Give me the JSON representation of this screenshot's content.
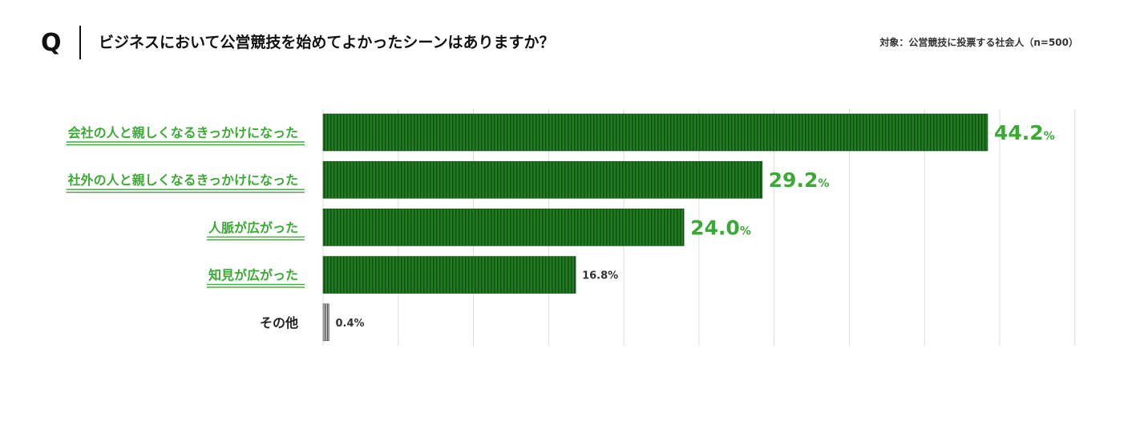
{
  "header": {
    "q_mark": "Q",
    "question": "ビジネスにおいて公営競技を始めてよかったシーンはありますか？",
    "target": "対象：公営競技に投票する社会人（n=500）"
  },
  "colors": {
    "bar_fill": "#1e7d1e",
    "bar_stripe": "#0f4f0f",
    "highlight_text": "#3aaa35",
    "other_bar": "#888888",
    "grid": "#dddddd",
    "label_dark": "#222222"
  },
  "chart_data": {
    "type": "bar",
    "orientation": "horizontal",
    "categories": [
      "会社の人と親しくなるきっかけになった",
      "社外の人と親しくなるきっかけになった",
      "人脈が広がった",
      "知見が広がった",
      "その他"
    ],
    "values": [
      44.2,
      29.2,
      24.0,
      16.8,
      0.4
    ],
    "value_labels": [
      "44.2",
      "29.2",
      "24.0",
      "16.8%",
      "0.4%"
    ],
    "unit": "%",
    "highlighted": [
      true,
      true,
      true,
      true,
      false
    ],
    "large_value_label": [
      true,
      true,
      true,
      false,
      false
    ],
    "xlim": [
      0,
      50
    ],
    "grid_step": 5,
    "grid": true,
    "title": "",
    "xlabel": "",
    "ylabel": ""
  }
}
